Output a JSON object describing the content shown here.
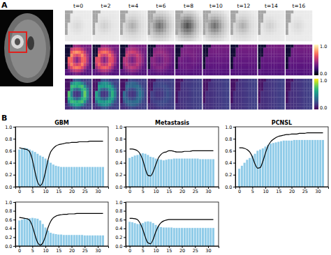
{
  "panel_labels": [
    "A",
    "B"
  ],
  "image_panel": {
    "time_labels": [
      "t=0",
      "t=2",
      "t=4",
      "t=6",
      "t=8",
      "t=10",
      "t=12",
      "t=14",
      "t=16"
    ],
    "colorbars": [
      {
        "range": [
          0,
          1
        ],
        "ticks": [
          {
            "value": 0,
            "label": "0.0"
          },
          {
            "value": 1,
            "label": "1.0"
          }
        ]
      },
      {
        "range": [
          0,
          1
        ],
        "ticks": [
          {
            "value": 0,
            "label": "0.0"
          },
          {
            "value": 1,
            "label": "1.0"
          }
        ]
      }
    ]
  },
  "chart_data": [
    {
      "type": "bar",
      "title": "GBM",
      "x": [
        0,
        1,
        2,
        3,
        4,
        5,
        6,
        7,
        8,
        9,
        10,
        11,
        12,
        13,
        14,
        15,
        16,
        17,
        18,
        19,
        20,
        21,
        22,
        23,
        24,
        25,
        26,
        27,
        28,
        29,
        30,
        31,
        32
      ],
      "xlim": [
        -1.5,
        34
      ],
      "xticks": [
        0,
        5,
        10,
        15,
        20,
        25,
        30
      ],
      "ylim": [
        0,
        1
      ],
      "yticks": [
        {
          "value": 0,
          "label": "0.0"
        },
        {
          "value": 0.2,
          "label": "0.2"
        },
        {
          "value": 0.4,
          "label": "0.4"
        },
        {
          "value": 0.6,
          "label": "0.6"
        },
        {
          "value": 0.8,
          "label": "0.8"
        },
        {
          "value": 1,
          "label": "1.0"
        }
      ],
      "series": [
        {
          "type": "bar",
          "color": "#8fcbe8",
          "values": [
            0.62,
            0.64,
            0.65,
            0.64,
            0.62,
            0.6,
            0.58,
            0.55,
            0.52,
            0.5,
            0.47,
            0.44,
            0.4,
            0.37,
            0.35,
            0.34,
            0.33,
            0.33,
            0.33,
            0.33,
            0.33,
            0.33,
            0.33,
            0.33,
            0.33,
            0.33,
            0.33,
            0.33,
            0.33,
            0.33,
            0.33,
            0.33,
            0.33
          ]
        },
        {
          "type": "line",
          "color": "#000000",
          "values": [
            0.65,
            0.64,
            0.63,
            0.62,
            0.58,
            0.45,
            0.25,
            0.08,
            0.02,
            0.08,
            0.25,
            0.45,
            0.58,
            0.64,
            0.68,
            0.7,
            0.71,
            0.72,
            0.73,
            0.73,
            0.74,
            0.74,
            0.74,
            0.75,
            0.75,
            0.75,
            0.75,
            0.76,
            0.76,
            0.76,
            0.76,
            0.76,
            0.76
          ]
        }
      ]
    },
    {
      "type": "bar",
      "title": "Metastasis",
      "x": [
        0,
        1,
        2,
        3,
        4,
        5,
        6,
        7,
        8,
        9,
        10,
        11,
        12,
        13,
        14,
        15,
        16,
        17,
        18,
        19,
        20,
        21,
        22,
        23,
        24,
        25,
        26,
        27,
        28,
        29,
        30,
        31,
        32
      ],
      "xlim": [
        -1.5,
        34
      ],
      "xticks": [
        0,
        5,
        10,
        15,
        20,
        25,
        30
      ],
      "ylim": [
        0,
        1
      ],
      "yticks": [
        {
          "value": 0,
          "label": "0.0"
        },
        {
          "value": 0.2,
          "label": "0.2"
        },
        {
          "value": 0.4,
          "label": "0.4"
        },
        {
          "value": 0.6,
          "label": "0.6"
        },
        {
          "value": 0.8,
          "label": "0.8"
        },
        {
          "value": 1,
          "label": "1.0"
        }
      ],
      "series": [
        {
          "type": "bar",
          "color": "#8fcbe8",
          "values": [
            0.48,
            0.5,
            0.52,
            0.53,
            0.55,
            0.56,
            0.55,
            0.53,
            0.5,
            0.49,
            0.47,
            0.46,
            0.45,
            0.44,
            0.45,
            0.46,
            0.46,
            0.47,
            0.47,
            0.47,
            0.47,
            0.47,
            0.47,
            0.47,
            0.47,
            0.47,
            0.47,
            0.46,
            0.46,
            0.46,
            0.46,
            0.46,
            0.46
          ]
        },
        {
          "type": "line",
          "color": "#000000",
          "values": [
            0.63,
            0.63,
            0.62,
            0.6,
            0.55,
            0.45,
            0.3,
            0.19,
            0.18,
            0.25,
            0.37,
            0.48,
            0.54,
            0.57,
            0.58,
            0.6,
            0.6,
            0.59,
            0.58,
            0.58,
            0.58,
            0.59,
            0.59,
            0.59,
            0.6,
            0.6,
            0.6,
            0.6,
            0.6,
            0.6,
            0.6,
            0.6,
            0.6
          ]
        }
      ]
    },
    {
      "type": "bar",
      "title": "PCNSL",
      "x": [
        0,
        1,
        2,
        3,
        4,
        5,
        6,
        7,
        8,
        9,
        10,
        11,
        12,
        13,
        14,
        15,
        16,
        17,
        18,
        19,
        20,
        21,
        22,
        23,
        24,
        25,
        26,
        27,
        28,
        29,
        30,
        31,
        32
      ],
      "xlim": [
        -1.5,
        34
      ],
      "xticks": [
        0,
        5,
        10,
        15,
        20,
        25,
        30
      ],
      "ylim": [
        0,
        1
      ],
      "yticks": [
        {
          "value": 0,
          "label": "0.0"
        },
        {
          "value": 0.2,
          "label": "0.2"
        },
        {
          "value": 0.4,
          "label": "0.4"
        },
        {
          "value": 0.6,
          "label": "0.6"
        },
        {
          "value": 0.8,
          "label": "0.8"
        },
        {
          "value": 1,
          "label": "1.0"
        }
      ],
      "series": [
        {
          "type": "bar",
          "color": "#8fcbe8",
          "values": [
            0.3,
            0.35,
            0.4,
            0.45,
            0.48,
            0.52,
            0.55,
            0.6,
            0.62,
            0.64,
            0.67,
            0.7,
            0.72,
            0.73,
            0.74,
            0.75,
            0.76,
            0.77,
            0.77,
            0.77,
            0.77,
            0.78,
            0.78,
            0.78,
            0.78,
            0.78,
            0.78,
            0.78,
            0.78,
            0.78,
            0.78,
            0.78,
            0.78
          ]
        },
        {
          "type": "line",
          "color": "#000000",
          "values": [
            0.65,
            0.65,
            0.64,
            0.62,
            0.58,
            0.5,
            0.38,
            0.31,
            0.32,
            0.42,
            0.56,
            0.68,
            0.75,
            0.79,
            0.82,
            0.84,
            0.85,
            0.86,
            0.87,
            0.87,
            0.88,
            0.88,
            0.88,
            0.89,
            0.89,
            0.89,
            0.9,
            0.9,
            0.9,
            0.9,
            0.9,
            0.9,
            0.9
          ]
        }
      ]
    },
    {
      "type": "bar",
      "x": [
        0,
        1,
        2,
        3,
        4,
        5,
        6,
        7,
        8,
        9,
        10,
        11,
        12,
        13,
        14,
        15,
        16,
        17,
        18,
        19,
        20,
        21,
        22,
        23,
        24,
        25,
        26,
        27,
        28,
        29,
        30,
        31,
        32
      ],
      "xlim": [
        -1.5,
        34
      ],
      "xticks": [
        0,
        5,
        10,
        15,
        20,
        25,
        30
      ],
      "ylim": [
        0,
        1
      ],
      "yticks": [
        {
          "value": 0,
          "label": "0.0"
        },
        {
          "value": 0.2,
          "label": "0.2"
        },
        {
          "value": 0.4,
          "label": "0.4"
        },
        {
          "value": 0.6,
          "label": "0.6"
        },
        {
          "value": 0.8,
          "label": "0.8"
        },
        {
          "value": 1,
          "label": "1.0"
        }
      ],
      "series": [
        {
          "type": "bar",
          "color": "#8fcbe8",
          "values": [
            0.58,
            0.6,
            0.62,
            0.62,
            0.63,
            0.64,
            0.63,
            0.62,
            0.58,
            0.5,
            0.42,
            0.35,
            0.3,
            0.28,
            0.27,
            0.26,
            0.26,
            0.25,
            0.25,
            0.25,
            0.25,
            0.25,
            0.25,
            0.25,
            0.25,
            0.24,
            0.24,
            0.24,
            0.24,
            0.24,
            0.24,
            0.24,
            0.24
          ]
        },
        {
          "type": "line",
          "color": "#000000",
          "values": [
            0.65,
            0.64,
            0.63,
            0.62,
            0.58,
            0.45,
            0.25,
            0.08,
            0.02,
            0.07,
            0.22,
            0.42,
            0.56,
            0.64,
            0.68,
            0.7,
            0.71,
            0.72,
            0.72,
            0.73,
            0.73,
            0.73,
            0.74,
            0.74,
            0.74,
            0.74,
            0.74,
            0.74,
            0.74,
            0.74,
            0.74,
            0.74,
            0.74
          ]
        }
      ]
    },
    {
      "type": "bar",
      "x": [
        0,
        1,
        2,
        3,
        4,
        5,
        6,
        7,
        8,
        9,
        10,
        11,
        12,
        13,
        14,
        15,
        16,
        17,
        18,
        19,
        20,
        21,
        22,
        23,
        24,
        25,
        26,
        27,
        28,
        29,
        30,
        31,
        32
      ],
      "xlim": [
        -1.5,
        34
      ],
      "xticks": [
        0,
        5,
        10,
        15,
        20,
        25,
        30
      ],
      "ylim": [
        0,
        1
      ],
      "yticks": [
        {
          "value": 0,
          "label": "0.0"
        },
        {
          "value": 0.2,
          "label": "0.2"
        },
        {
          "value": 0.4,
          "label": "0.4"
        },
        {
          "value": 0.6,
          "label": "0.6"
        },
        {
          "value": 0.8,
          "label": "0.8"
        },
        {
          "value": 1,
          "label": "1.0"
        }
      ],
      "series": [
        {
          "type": "bar",
          "color": "#8fcbe8",
          "values": [
            0.55,
            0.54,
            0.52,
            0.5,
            0.5,
            0.52,
            0.55,
            0.56,
            0.55,
            0.52,
            0.48,
            0.45,
            0.43,
            0.42,
            0.42,
            0.42,
            0.42,
            0.41,
            0.41,
            0.41,
            0.41,
            0.41,
            0.41,
            0.41,
            0.41,
            0.41,
            0.41,
            0.41,
            0.41,
            0.41,
            0.41,
            0.41,
            0.41
          ]
        },
        {
          "type": "line",
          "color": "#000000",
          "values": [
            0.63,
            0.63,
            0.62,
            0.6,
            0.52,
            0.38,
            0.2,
            0.07,
            0.05,
            0.15,
            0.32,
            0.45,
            0.53,
            0.57,
            0.59,
            0.6,
            0.6,
            0.6,
            0.6,
            0.6,
            0.6,
            0.6,
            0.6,
            0.6,
            0.6,
            0.6,
            0.6,
            0.6,
            0.6,
            0.6,
            0.6,
            0.6,
            0.6
          ]
        }
      ]
    }
  ]
}
